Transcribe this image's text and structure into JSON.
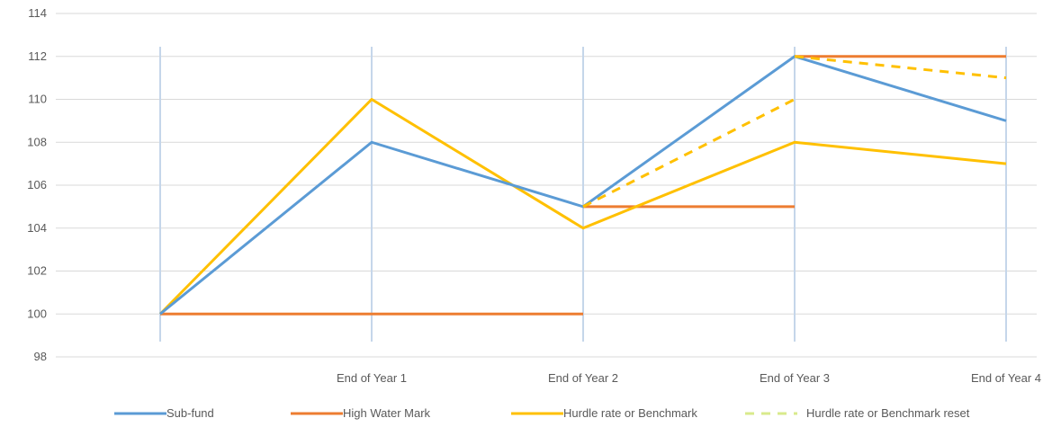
{
  "chart_data": {
    "type": "line",
    "categories": [
      "",
      "End of Year 1",
      "End of Year 2",
      "End of Year 3",
      "End of Year 4"
    ],
    "ylim": [
      98,
      114
    ],
    "yticks": [
      98,
      100,
      102,
      104,
      106,
      108,
      110,
      112,
      114
    ],
    "grid": true,
    "legend_position": "bottom",
    "colors": {
      "subfund": "#5b9bd5",
      "hwm": "#ed7d31",
      "hurdle": "#ffc000",
      "hurdle_reset": "#ffc000",
      "legend_reset_swatch": "#d9ea8c",
      "gridline": "#d9d9d9",
      "vline": "#c5d6ea"
    },
    "series": [
      {
        "key": "subfund",
        "name": "Sub-fund",
        "segments": [
          [
            [
              0,
              100
            ],
            [
              1,
              108
            ],
            [
              2,
              105
            ],
            [
              3,
              112
            ],
            [
              4,
              109
            ]
          ]
        ],
        "dashed": false
      },
      {
        "key": "hwm",
        "name": "High Water Mark",
        "segments": [
          [
            [
              0,
              100
            ],
            [
              2,
              100
            ]
          ],
          [
            [
              2,
              105
            ],
            [
              3,
              105
            ]
          ],
          [
            [
              3,
              112
            ],
            [
              4,
              112
            ]
          ]
        ],
        "dashed": false
      },
      {
        "key": "hurdle",
        "name": "Hurdle rate or Benchmark",
        "segments": [
          [
            [
              0,
              100
            ],
            [
              1,
              110
            ],
            [
              2,
              104
            ],
            [
              3,
              108
            ],
            [
              4,
              107
            ]
          ]
        ],
        "dashed": false
      },
      {
        "key": "hurdle_reset",
        "name": "Hurdle rate or Benchmark reset",
        "segments": [
          [
            [
              2,
              105
            ],
            [
              3,
              110
            ]
          ],
          [
            [
              3,
              112
            ],
            [
              4,
              111
            ]
          ]
        ],
        "dashed": true
      }
    ]
  }
}
